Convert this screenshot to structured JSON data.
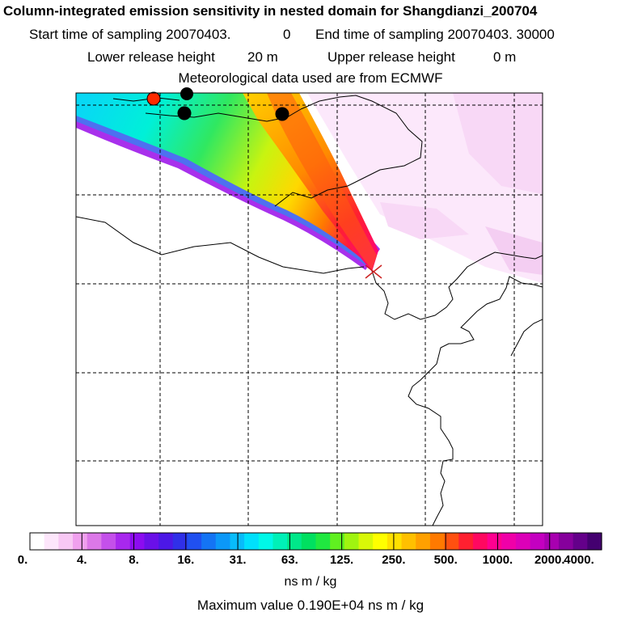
{
  "header": {
    "title": "Column-integrated emission sensitivity in nested domain for Shangdianzi_200704",
    "start_label": "Start time of sampling 20070403.",
    "start_value": "0",
    "end_label": "End time of sampling 20070403. 30000",
    "lower_label": "Lower release height",
    "lower_value": "20 m",
    "upper_label": "Upper release height",
    "upper_value": "0 m",
    "met_line": "Meteorological data used are from ECMWF"
  },
  "colorbar": {
    "labels": [
      "0.",
      "4.",
      "8.",
      "16.",
      "31.",
      "63.",
      "125.",
      "250.",
      "500.",
      "1000.",
      "2000.",
      "4000."
    ],
    "colors": [
      "#ffffff",
      "#fde6fb",
      "#f8c8f4",
      "#f0a0ee",
      "#dc78e8",
      "#c450ea",
      "#a828ee",
      "#8c0cf0",
      "#6a10e8",
      "#4c18e6",
      "#3030e8",
      "#2050f0",
      "#1474f4",
      "#0c98f8",
      "#08bcfa",
      "#00e0fc",
      "#00f8e8",
      "#00f0b8",
      "#00e88a",
      "#00e060",
      "#20e840",
      "#60f020",
      "#a0f410",
      "#d8f808",
      "#ffff00",
      "#ffe000",
      "#ffc000",
      "#ffa000",
      "#ff7a00",
      "#ff5010",
      "#ff2030",
      "#ff0860",
      "#ff0090",
      "#f000a8",
      "#dc00b8",
      "#c400c0",
      "#a800b0",
      "#86009c",
      "#64008a",
      "#440070"
    ],
    "units": "ns m / kg"
  },
  "map": {
    "receptor_marker_color": "#cc2222",
    "site_markers": [
      {
        "name": "red-site",
        "color": "#ff2a00"
      },
      {
        "name": "black-site-1",
        "color": "#000000"
      },
      {
        "name": "black-site-2",
        "color": "#000000"
      },
      {
        "name": "black-site-3",
        "color": "#000000"
      }
    ]
  },
  "footer": {
    "maximum_value": "Maximum value  0.190E+04 ns m / kg"
  }
}
